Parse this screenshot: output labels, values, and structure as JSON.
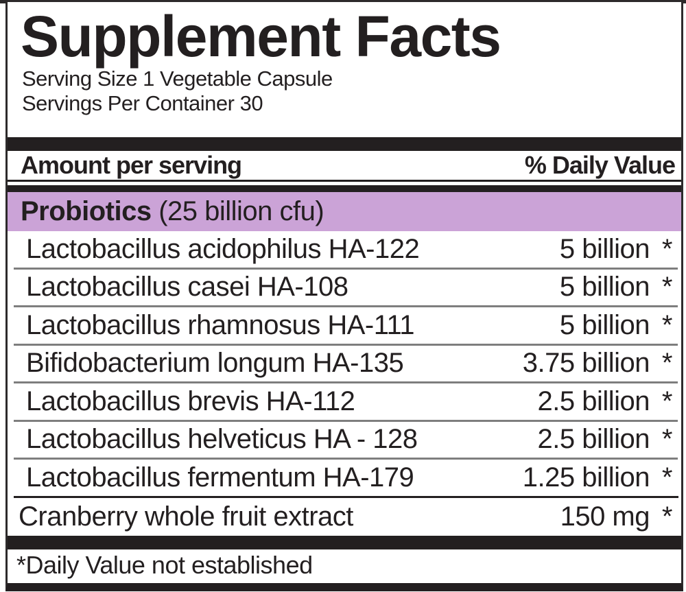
{
  "label": {
    "title": "Supplement Facts",
    "serving_size": "Serving Size 1 Vegetable Capsule",
    "servings_per_container": "Servings Per Container 30",
    "header": {
      "amount_label": "Amount per serving",
      "daily_value_label": "% Daily Value"
    },
    "group": {
      "name": "Probiotics",
      "detail": " (25 billion cfu)"
    },
    "ingredients": [
      {
        "name": "Lactobacillus acidophilus HA-122",
        "amount": "5 billion",
        "dv": "*"
      },
      {
        "name": "Lactobacillus casei HA-108",
        "amount": "5 billion",
        "dv": "*"
      },
      {
        "name": "Lactobacillus rhamnosus HA-111",
        "amount": "5 billion",
        "dv": "*"
      },
      {
        "name": "Bifidobacterium longum HA-135",
        "amount": "3.75 billion",
        "dv": "*"
      },
      {
        "name": "Lactobacillus brevis HA-112",
        "amount": "2.5 billion",
        "dv": "*"
      },
      {
        "name": "Lactobacillus helveticus HA - 128",
        "amount": "2.5 billion",
        "dv": "*"
      },
      {
        "name": "Lactobacillus fermentum HA-179",
        "amount": "1.25 billion",
        "dv": "*"
      }
    ],
    "other_ingredient": {
      "name": "Cranberry whole fruit extract",
      "amount": "150 mg",
      "dv": "*"
    },
    "footnote": "*Daily Value not established"
  },
  "colors": {
    "highlight": "#cba3d7",
    "bar": "#231f20",
    "separator": "#7e7e7e",
    "border": "#2d2a2b"
  }
}
